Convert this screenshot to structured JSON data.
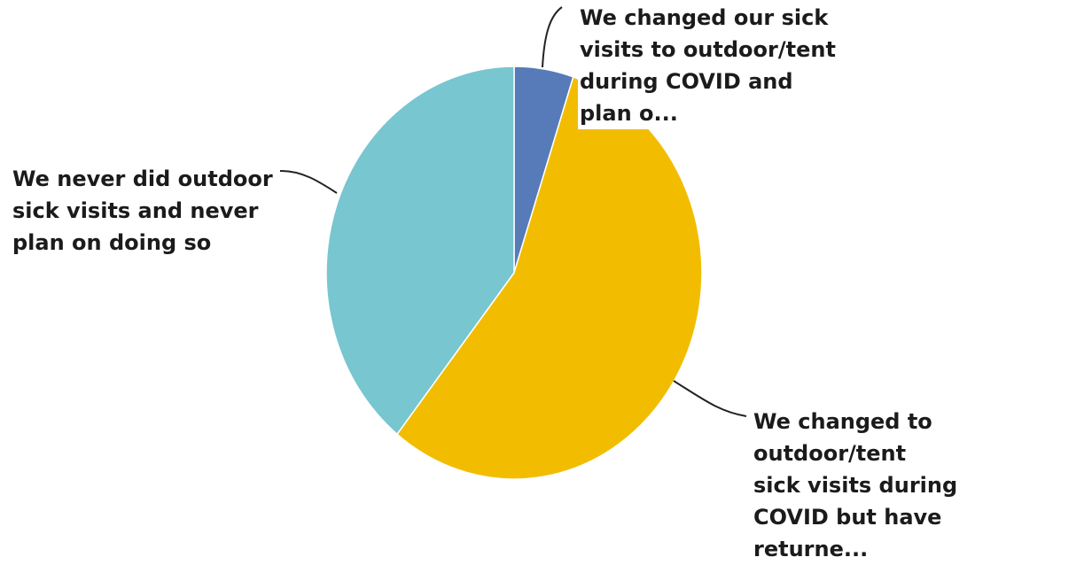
{
  "chart_data": {
    "type": "pie",
    "start_angle": "top",
    "direction": "clockwise",
    "slices": [
      {
        "label": "We changed our sick visits to outdoor/tent during COVID and plan o...",
        "value": 5.1,
        "color": "#567bb8"
      },
      {
        "label": "We changed to outdoor/tent sick visits during COVID but have returne...",
        "value": 55.6,
        "color": "#f2bd00"
      },
      {
        "label": "We never did outdoor sick visits and never plan on doing so",
        "value": 39.3,
        "color": "#78c6cf"
      }
    ],
    "label_lines": [
      [
        "We changed our sick",
        "visits to outdoor/tent",
        "during COVID and",
        "plan o..."
      ],
      [
        "We changed to outdoor/tent",
        "sick visits during",
        "COVID but have",
        "returne..."
      ],
      [
        "We never did outdoor",
        "sick visits and never",
        "plan on doing so"
      ]
    ],
    "legend": "none",
    "grid": false
  }
}
